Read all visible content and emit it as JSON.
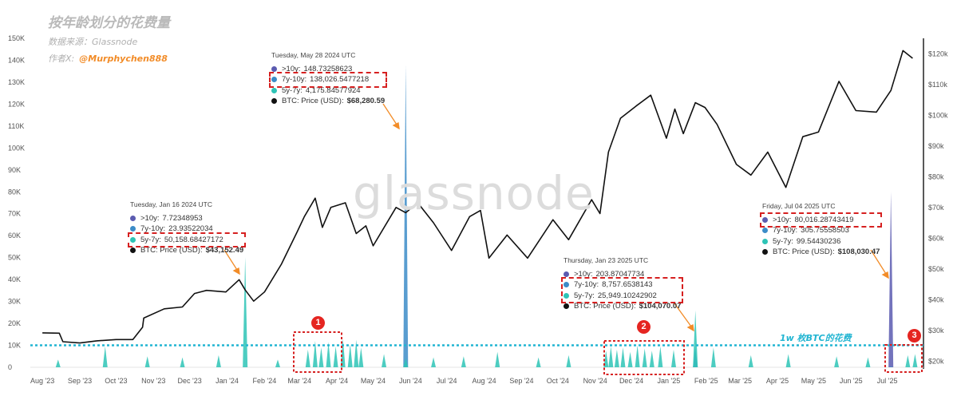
{
  "header": {
    "title": "按年龄划分的花费量",
    "source": "数据来源：Glassnode",
    "author_prefix": "作者X:",
    "author_handle": "@Murphychen888"
  },
  "watermark": "glassnode",
  "threshold_label": "1w 枚BTC的花费",
  "badges": [
    "1",
    "2",
    "3"
  ],
  "annotations": [
    {
      "date": "Tuesday, Jan 16 2024 UTC",
      "rows": [
        {
          "label": ">10y:",
          "value": "7.72348953",
          "color": "#5b5bb0"
        },
        {
          "label": "7y-10y:",
          "value": "23.93522034",
          "color": "#3c8cc8"
        },
        {
          "label": "5y-7y:",
          "value": "50,158.68427172",
          "color": "#2ec4b6"
        }
      ],
      "price_label": "BTC: Price (USD):",
      "price_value": "$43,152.49"
    },
    {
      "date": "Tuesday, May 28 2024 UTC",
      "rows": [
        {
          "label": ">10y:",
          "value": "148.73258623",
          "color": "#5b5bb0"
        },
        {
          "label": "7y-10y:",
          "value": "138,026.5477218",
          "color": "#3c8cc8"
        },
        {
          "label": "5y-7y:",
          "value": "4,175.84577924",
          "color": "#2ec4b6"
        }
      ],
      "price_label": "BTC: Price (USD):",
      "price_value": "$68,280.59"
    },
    {
      "date": "Thursday, Jan 23 2025 UTC",
      "rows": [
        {
          "label": ">10y:",
          "value": "203.87047734",
          "color": "#5b5bb0"
        },
        {
          "label": "7y-10y:",
          "value": "8,757.6538143",
          "color": "#3c8cc8"
        },
        {
          "label": "5y-7y:",
          "value": "25,949.10242902",
          "color": "#2ec4b6"
        }
      ],
      "price_label": "BTC: Price (USD):",
      "price_value": "$104,070.07"
    },
    {
      "date": "Friday, Jul 04 2025 UTC",
      "rows": [
        {
          "label": ">10y:",
          "value": "80,016.28743419",
          "color": "#5b5bb0"
        },
        {
          "label": "7y-10y:",
          "value": "305.75558503",
          "color": "#3c8cc8"
        },
        {
          "label": "5y-7y:",
          "value": "99.54430236",
          "color": "#2ec4b6"
        }
      ],
      "price_label": "BTC: Price (USD):",
      "price_value": "$108,030.47"
    }
  ],
  "colors": {
    "price_line": "#111111",
    "gt10y": "#5b5bb0",
    "y7_10": "#3c8cc8",
    "y5_7": "#2ec4b6",
    "threshold": "#22b5d2",
    "highlight": "#d62020",
    "arrow": "#f28c28"
  },
  "chart_data": {
    "type": "line",
    "x_ticks": [
      "Aug '23",
      "Sep '23",
      "Oct '23",
      "Nov '23",
      "Dec '23",
      "Jan '24",
      "Feb '24",
      "Mar '24",
      "Apr '24",
      "May '24",
      "Jun '24",
      "Jul '24",
      "Aug '24",
      "Sep '24",
      "Oct '24",
      "Nov '24",
      "Dec '24",
      "Jan '25",
      "Feb '25",
      "Mar '25",
      "Apr '25",
      "May '25",
      "Jun '25",
      "Jul '25"
    ],
    "y_left_ticks": [
      "0",
      "10K",
      "20K",
      "30K",
      "40K",
      "50K",
      "60K",
      "70K",
      "80K",
      "90K",
      "100K",
      "110K",
      "120K",
      "130K",
      "140K",
      "150K"
    ],
    "y_left_range": [
      0,
      150000
    ],
    "y_right_ticks": [
      "$20k",
      "$30k",
      "$40k",
      "$50k",
      "$60k",
      "$70k",
      "$80k",
      "$90k",
      "$100k",
      "$110k",
      "$120k"
    ],
    "y_right_range": [
      18000,
      125000
    ],
    "threshold": 10000,
    "series": [
      {
        "name": "BTC: Price (USD)",
        "axis": "right",
        "points": [
          [
            "2023-08-01",
            29200
          ],
          [
            "2023-08-15",
            29100
          ],
          [
            "2023-08-18",
            26300
          ],
          [
            "2023-09-01",
            25900
          ],
          [
            "2023-09-15",
            26600
          ],
          [
            "2023-10-01",
            27000
          ],
          [
            "2023-10-15",
            27000
          ],
          [
            "2023-10-23",
            31000
          ],
          [
            "2023-10-24",
            34000
          ],
          [
            "2023-11-10",
            37000
          ],
          [
            "2023-11-25",
            37600
          ],
          [
            "2023-12-05",
            42000
          ],
          [
            "2023-12-15",
            43000
          ],
          [
            "2023-12-31",
            42500
          ],
          [
            "2024-01-11",
            46500
          ],
          [
            "2024-01-16",
            43152
          ],
          [
            "2024-01-23",
            39500
          ],
          [
            "2024-02-01",
            42500
          ],
          [
            "2024-02-15",
            51500
          ],
          [
            "2024-02-28",
            62000
          ],
          [
            "2024-03-05",
            67000
          ],
          [
            "2024-03-14",
            73000
          ],
          [
            "2024-03-20",
            63500
          ],
          [
            "2024-03-27",
            70000
          ],
          [
            "2024-04-08",
            71500
          ],
          [
            "2024-04-17",
            61500
          ],
          [
            "2024-04-25",
            64000
          ],
          [
            "2024-05-01",
            57500
          ],
          [
            "2024-05-20",
            70000
          ],
          [
            "2024-05-28",
            68280
          ],
          [
            "2024-06-07",
            71500
          ],
          [
            "2024-06-20",
            65000
          ],
          [
            "2024-07-05",
            56000
          ],
          [
            "2024-07-20",
            67000
          ],
          [
            "2024-07-29",
            69000
          ],
          [
            "2024-08-05",
            53500
          ],
          [
            "2024-08-20",
            61000
          ],
          [
            "2024-09-06",
            53500
          ],
          [
            "2024-09-27",
            66000
          ],
          [
            "2024-10-10",
            59500
          ],
          [
            "2024-10-29",
            72500
          ],
          [
            "2024-11-05",
            68000
          ],
          [
            "2024-11-12",
            88000
          ],
          [
            "2024-11-22",
            99000
          ],
          [
            "2024-12-05",
            103000
          ],
          [
            "2024-12-17",
            106500
          ],
          [
            "2024-12-30",
            92500
          ],
          [
            "2025-01-06",
            102000
          ],
          [
            "2025-01-13",
            94000
          ],
          [
            "2025-01-23",
            104070
          ],
          [
            "2025-01-31",
            102500
          ],
          [
            "2025-02-10",
            97000
          ],
          [
            "2025-02-26",
            84000
          ],
          [
            "2025-03-10",
            80500
          ],
          [
            "2025-03-24",
            88000
          ],
          [
            "2025-04-08",
            76500
          ],
          [
            "2025-04-22",
            93000
          ],
          [
            "2025-05-05",
            94500
          ],
          [
            "2025-05-22",
            111000
          ],
          [
            "2025-06-05",
            101500
          ],
          [
            "2025-06-22",
            101000
          ],
          [
            "2025-07-04",
            108030
          ],
          [
            "2025-07-14",
            121000
          ],
          [
            "2025-07-22",
            118500
          ]
        ]
      },
      {
        "name": ">10y",
        "axis": "left",
        "points": [
          [
            "2024-01-16",
            8
          ],
          [
            "2024-05-28",
            149
          ],
          [
            "2025-01-23",
            204
          ],
          [
            "2025-07-04",
            80016
          ]
        ]
      },
      {
        "name": "7y-10y",
        "axis": "left",
        "points": [
          [
            "2024-01-16",
            24
          ],
          [
            "2024-05-28",
            138027
          ],
          [
            "2025-01-23",
            8758
          ],
          [
            "2025-07-04",
            306
          ]
        ]
      },
      {
        "name": "5y-7y",
        "axis": "left",
        "points": [
          [
            "2023-08-14",
            3500
          ],
          [
            "2023-09-22",
            9500
          ],
          [
            "2023-10-27",
            5000
          ],
          [
            "2023-11-25",
            4500
          ],
          [
            "2023-12-25",
            5500
          ],
          [
            "2024-01-16",
            50158
          ],
          [
            "2024-02-12",
            3500
          ],
          [
            "2024-03-08",
            8000
          ],
          [
            "2024-03-14",
            12000
          ],
          [
            "2024-03-19",
            9000
          ],
          [
            "2024-03-25",
            11500
          ],
          [
            "2024-03-31",
            9500
          ],
          [
            "2024-04-06",
            13000
          ],
          [
            "2024-04-12",
            10500
          ],
          [
            "2024-04-17",
            12500
          ],
          [
            "2024-04-21",
            9000
          ],
          [
            "2024-05-10",
            6000
          ],
          [
            "2024-05-28",
            4176
          ],
          [
            "2024-06-20",
            4500
          ],
          [
            "2024-07-15",
            5000
          ],
          [
            "2024-08-12",
            7000
          ],
          [
            "2024-09-15",
            4500
          ],
          [
            "2024-10-10",
            5500
          ],
          [
            "2024-11-10",
            7500
          ],
          [
            "2024-11-14",
            9500
          ],
          [
            "2024-11-19",
            8000
          ],
          [
            "2024-11-24",
            9000
          ],
          [
            "2024-11-30",
            7000
          ],
          [
            "2024-12-06",
            10000
          ],
          [
            "2024-12-12",
            8500
          ],
          [
            "2024-12-18",
            7500
          ],
          [
            "2024-12-25",
            9500
          ],
          [
            "2025-01-05",
            8000
          ],
          [
            "2025-01-23",
            25949
          ],
          [
            "2025-02-07",
            9000
          ],
          [
            "2025-03-10",
            5500
          ],
          [
            "2025-04-10",
            6000
          ],
          [
            "2025-05-20",
            5000
          ],
          [
            "2025-06-15",
            4500
          ],
          [
            "2025-07-18",
            5500
          ],
          [
            "2025-07-24",
            6000
          ]
        ]
      }
    ]
  }
}
